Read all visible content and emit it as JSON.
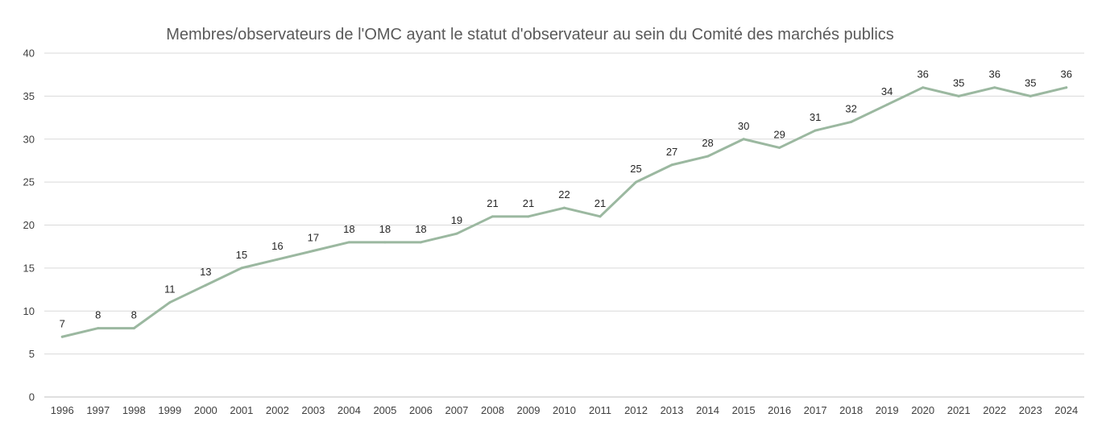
{
  "chart_data": {
    "type": "line",
    "title": "Membres/observateurs de l'OMC ayant le statut d'observateur au sein du Comité des marchés publics",
    "xlabel": "",
    "ylabel": "",
    "ylim": [
      0,
      40
    ],
    "yticks": [
      0,
      5,
      10,
      15,
      20,
      25,
      30,
      35,
      40
    ],
    "grid": true,
    "legend": "none",
    "line_color": "#9bb8a0",
    "categories": [
      "1996",
      "1997",
      "1998",
      "1999",
      "2000",
      "2001",
      "2002",
      "2003",
      "2004",
      "2005",
      "2006",
      "2007",
      "2008",
      "2009",
      "2010",
      "2011",
      "2012",
      "2013",
      "2014",
      "2015",
      "2016",
      "2017",
      "2018",
      "2019",
      "2020",
      "2021",
      "2022",
      "2023",
      "2024"
    ],
    "series": [
      {
        "values": [
          7,
          8,
          8,
          11,
          13,
          15,
          16,
          17,
          18,
          18,
          18,
          19,
          21,
          21,
          22,
          21,
          25,
          27,
          28,
          30,
          29,
          31,
          32,
          34,
          36,
          35,
          36,
          35,
          36
        ]
      }
    ]
  }
}
